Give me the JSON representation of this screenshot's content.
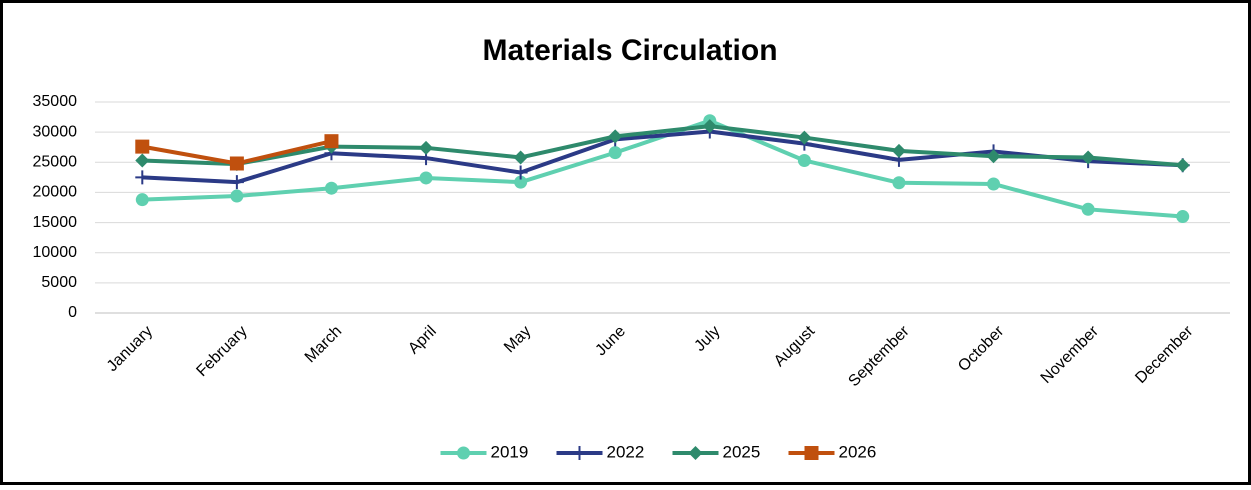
{
  "chart_data": {
    "type": "line",
    "title": "Materials Circulation",
    "categories": [
      "January",
      "February",
      "March",
      "April",
      "May",
      "June",
      "July",
      "August",
      "September",
      "October",
      "November",
      "December"
    ],
    "series": [
      {
        "name": "2019",
        "color": "#5fd0b0",
        "marker": "circle",
        "values": [
          18800,
          19400,
          20700,
          22400,
          21700,
          26600,
          31900,
          25300,
          21600,
          21400,
          17200,
          16000
        ]
      },
      {
        "name": "2022",
        "color": "#2b3a86",
        "marker": "plus",
        "values": [
          22500,
          21700,
          26500,
          25700,
          23300,
          28800,
          30100,
          28100,
          25400,
          26800,
          25200,
          24500
        ]
      },
      {
        "name": "2025",
        "color": "#2e8a6c",
        "marker": "diamond",
        "values": [
          25300,
          24700,
          27600,
          27400,
          25800,
          29300,
          31000,
          29100,
          26900,
          26000,
          25800,
          24500
        ]
      },
      {
        "name": "2026",
        "color": "#c0500e",
        "marker": "square",
        "values": [
          27600,
          24800,
          28500,
          null,
          null,
          null,
          null,
          null,
          null,
          null,
          null,
          null
        ]
      }
    ],
    "ylim": [
      0,
      35000
    ],
    "yticks": [
      0,
      5000,
      10000,
      15000,
      20000,
      25000,
      30000,
      35000
    ],
    "grid": true,
    "legend": "bottom"
  }
}
